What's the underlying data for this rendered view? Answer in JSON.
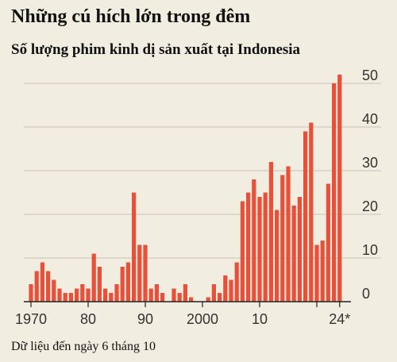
{
  "header": {
    "title": "Những cú hích lớn trong đêm",
    "subtitle": "Số lượng phim kinh dị sản xuất tại Indonesia"
  },
  "footnote": "Dữ liệu đến ngày 6 tháng 10",
  "colors": {
    "background": "#f2ede1",
    "bar": "#e8503a",
    "grid": "#c9c4b8",
    "axis": "#222222"
  },
  "chart_data": {
    "type": "bar",
    "title": "Những cú hích lớn trong đêm",
    "subtitle": "Số lượng phim kinh dị sản xuất tại Indonesia",
    "xlabel": "",
    "ylabel": "",
    "ylim": [
      0,
      50
    ],
    "grid": true,
    "y_axis_side": "right",
    "y_ticks": [
      0,
      10,
      20,
      30,
      40,
      50
    ],
    "x_tick_labels": [
      {
        "year": 1970,
        "label": "1970"
      },
      {
        "year": 1980,
        "label": "80"
      },
      {
        "year": 1990,
        "label": "90"
      },
      {
        "year": 2000,
        "label": "2000"
      },
      {
        "year": 2010,
        "label": "10"
      },
      {
        "year": 2024,
        "label": "24*"
      }
    ],
    "categories": [
      1970,
      1971,
      1972,
      1973,
      1974,
      1975,
      1976,
      1977,
      1978,
      1979,
      1980,
      1981,
      1982,
      1983,
      1984,
      1985,
      1986,
      1987,
      1988,
      1989,
      1990,
      1991,
      1992,
      1993,
      1994,
      1995,
      1996,
      1997,
      1998,
      1999,
      2000,
      2001,
      2002,
      2003,
      2004,
      2005,
      2006,
      2007,
      2008,
      2009,
      2010,
      2011,
      2012,
      2013,
      2014,
      2015,
      2016,
      2017,
      2018,
      2019,
      2020,
      2021,
      2022,
      2023,
      2024
    ],
    "values": [
      4,
      7,
      9,
      7,
      5,
      3,
      2,
      2,
      3,
      4,
      3,
      11,
      8,
      3,
      2,
      4,
      8,
      9,
      25,
      13,
      13,
      3,
      4,
      2,
      0,
      3,
      2,
      4,
      1,
      0,
      0,
      1,
      4,
      2,
      6,
      5,
      9,
      23,
      25,
      28,
      24,
      25,
      32,
      21,
      29,
      31,
      22,
      24,
      39,
      41,
      13,
      14,
      27,
      50,
      52
    ],
    "footnote": "Dữ liệu đến ngày 6 tháng 10"
  }
}
